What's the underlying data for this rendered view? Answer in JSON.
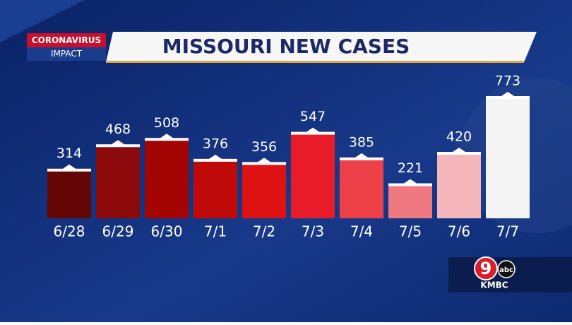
{
  "banner": {
    "tag": "CORONAVIRUS",
    "subtag": "IMPACT"
  },
  "logo": {
    "number": "9",
    "network": "abc",
    "station": "KMBC"
  },
  "chart_data": {
    "type": "bar",
    "title": "MISSOURI NEW CASES",
    "categories": [
      "6/28",
      "6/29",
      "6/30",
      "7/1",
      "7/2",
      "7/3",
      "7/4",
      "7/5",
      "7/6",
      "7/7"
    ],
    "values": [
      314,
      468,
      508,
      376,
      356,
      547,
      385,
      221,
      420,
      773
    ],
    "colors": [
      "#640606",
      "#8c0a0c",
      "#a40404",
      "#c00a0a",
      "#de1212",
      "#e81c28",
      "#ee4048",
      "#f07880",
      "#f5b6bc",
      "#f4f4f4"
    ]
  }
}
